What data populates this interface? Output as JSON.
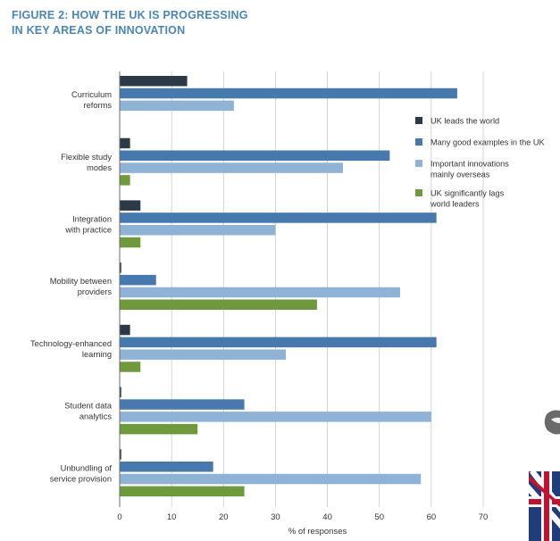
{
  "header": {
    "title_line1": "FIGURE 2: HOW THE UK IS PROGRESSING",
    "title_line2": "IN KEY AREAS OF INNOVATION"
  },
  "colors": {
    "title": "#4a86b8",
    "grid": "#c9c9c9",
    "axis": "#6b6b6b",
    "text": "#333333"
  },
  "chart_data": {
    "type": "bar",
    "orientation": "horizontal",
    "title": "FIGURE 2: HOW THE UK IS PROGRESSING IN KEY AREAS OF INNOVATION",
    "xlabel": "% of responses",
    "ylabel": "",
    "xlim": [
      0,
      70
    ],
    "xticks": [
      "0",
      "10",
      "20",
      "30",
      "40",
      "50",
      "60",
      "70"
    ],
    "grid": true,
    "legend_position": "right",
    "categories": [
      [
        "Curriculum",
        "reforms"
      ],
      [
        "Flexible study",
        "modes"
      ],
      [
        "Integration",
        "with practice"
      ],
      [
        "Mobility between",
        "providers"
      ],
      [
        "Technology-enhanced",
        "learning"
      ],
      [
        "Student data",
        "analytics"
      ],
      [
        "Unbundling of",
        "service provision"
      ]
    ],
    "series": [
      {
        "name": "UK leads the world",
        "legend_lines": [
          "UK leads the world"
        ],
        "color": "#2c3a47",
        "values": [
          13,
          2,
          4,
          0.3,
          2,
          0.3,
          0.3
        ]
      },
      {
        "name": "Many good examples in the UK",
        "legend_lines": [
          "Many good examples in the UK"
        ],
        "color": "#4679b0",
        "values": [
          65,
          52,
          61,
          7,
          61,
          24,
          18
        ]
      },
      {
        "name": "Important innovations mainly overseas",
        "legend_lines": [
          "Important innovations",
          "mainly overseas"
        ],
        "color": "#8fb3d6",
        "values": [
          22,
          43,
          30,
          54,
          32,
          60,
          58
        ]
      },
      {
        "name": "UK significantly lags world leaders",
        "legend_lines": [
          "UK significantly lags",
          "world leaders"
        ],
        "color": "#6e9a3c",
        "values": [
          0,
          2,
          4,
          38,
          4,
          15,
          24
        ]
      }
    ]
  }
}
